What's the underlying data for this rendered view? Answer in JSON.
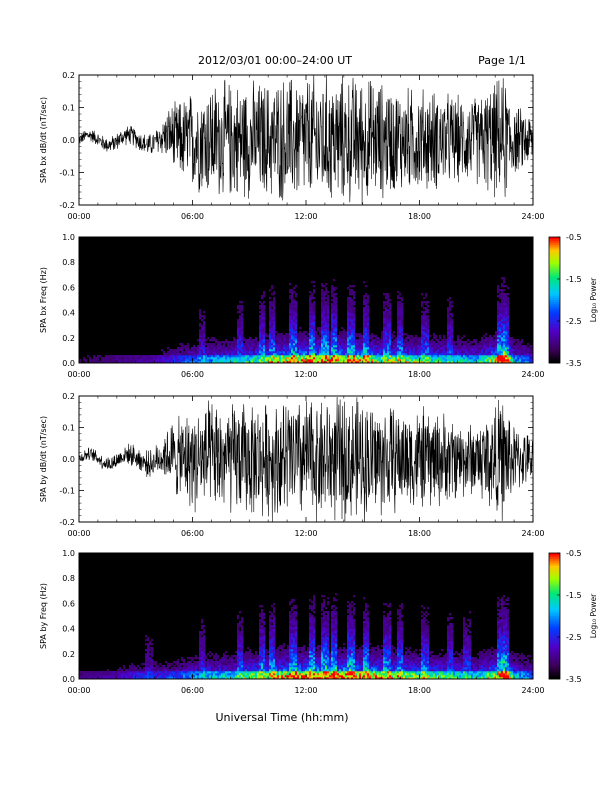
{
  "header": {
    "title": "2012/03/01   00:00–24:00 UT",
    "page": "Page 1/1"
  },
  "footer": {
    "xlabel": "Universal Time (hh:mm)"
  },
  "colorbar": {
    "label": "Log₁₀ Power",
    "ticks": [
      "-0.5",
      "-1.5",
      "-2.5",
      "-3.5"
    ],
    "range": [
      -3.5,
      -0.5
    ]
  },
  "chart_data": [
    {
      "type": "line",
      "ylabel": "SPA bx dB/dt (nT/sec)",
      "xlim_hours": [
        0,
        24
      ],
      "ylim": [
        -0.2,
        0.2
      ],
      "x_ticks": [
        "00:00",
        "06:00",
        "12:00",
        "18:00",
        "24:00"
      ],
      "y_ticks": [
        "-0.2",
        "-0.1",
        "0.0",
        "0.1",
        "0.2"
      ],
      "trace_color": "#000000",
      "envelope": {
        "hours": [
          0,
          1,
          2,
          3,
          4,
          4.5,
          5,
          6,
          7,
          8,
          9,
          10,
          11,
          12,
          13,
          14,
          15,
          16,
          17,
          18,
          19,
          20,
          21,
          22,
          22.5,
          23,
          24
        ],
        "amplitude": [
          0.02,
          0.025,
          0.03,
          0.035,
          0.04,
          0.07,
          0.12,
          0.17,
          0.2,
          0.2,
          0.2,
          0.2,
          0.22,
          0.22,
          0.22,
          0.22,
          0.22,
          0.2,
          0.18,
          0.18,
          0.17,
          0.15,
          0.15,
          0.2,
          0.22,
          0.12,
          0.09
        ]
      }
    },
    {
      "type": "heatmap",
      "ylabel": "SPA bx Freq (Hz)",
      "xlim_hours": [
        0,
        24
      ],
      "ylim": [
        0,
        1.0
      ],
      "x_ticks": [
        "00:00",
        "06:00",
        "12:00",
        "18:00",
        "24:00"
      ],
      "y_ticks": [
        "0.0",
        "0.2",
        "0.4",
        "0.6",
        "0.8",
        "1.0"
      ],
      "zlabel": "Log₁₀ Power",
      "zlim": [
        -3.5,
        -0.5
      ],
      "activity": {
        "hours": [
          0,
          2,
          4,
          5,
          6,
          7,
          8,
          9,
          10,
          11,
          12,
          13,
          14,
          15,
          16,
          17,
          18,
          19,
          20,
          21,
          22,
          22.5,
          23,
          24
        ],
        "level": [
          0.1,
          0.15,
          0.2,
          0.3,
          0.4,
          0.5,
          0.5,
          0.6,
          0.7,
          0.8,
          0.85,
          0.85,
          0.85,
          0.8,
          0.7,
          0.7,
          0.65,
          0.6,
          0.55,
          0.5,
          0.8,
          1.0,
          0.5,
          0.35
        ]
      },
      "bursts_hours": [
        6.5,
        8.5,
        9.7,
        10.2,
        11.3,
        12.3,
        13.0,
        13.5,
        14.4,
        15.2,
        16.3,
        17.0,
        18.3,
        19.6,
        22.3,
        22.6
      ]
    },
    {
      "type": "line",
      "ylabel": "SPA by dB/dt (nT/sec)",
      "xlim_hours": [
        0,
        24
      ],
      "ylim": [
        -0.2,
        0.2
      ],
      "x_ticks": [
        "00:00",
        "06:00",
        "12:00",
        "18:00",
        "24:00"
      ],
      "y_ticks": [
        "-0.2",
        "-0.1",
        "0.0",
        "0.1",
        "0.2"
      ],
      "trace_color": "#000000",
      "envelope": {
        "hours": [
          0,
          1,
          2,
          3,
          4,
          4.5,
          5,
          6,
          7,
          8,
          9,
          10,
          11,
          12,
          13,
          14,
          15,
          16,
          17,
          18,
          19,
          20,
          21,
          22,
          22.5,
          23,
          24
        ],
        "amplitude": [
          0.02,
          0.025,
          0.03,
          0.04,
          0.05,
          0.08,
          0.13,
          0.18,
          0.2,
          0.2,
          0.2,
          0.2,
          0.22,
          0.22,
          0.22,
          0.22,
          0.22,
          0.2,
          0.18,
          0.18,
          0.17,
          0.14,
          0.13,
          0.2,
          0.22,
          0.12,
          0.08
        ]
      }
    },
    {
      "type": "heatmap",
      "ylabel": "SPA by Freq (Hz)",
      "xlim_hours": [
        0,
        24
      ],
      "ylim": [
        0,
        1.0
      ],
      "x_ticks": [
        "00:00",
        "06:00",
        "12:00",
        "18:00",
        "24:00"
      ],
      "y_ticks": [
        "0.0",
        "0.2",
        "0.4",
        "0.6",
        "0.8",
        "1.0"
      ],
      "zlabel": "Log₁₀ Power",
      "zlim": [
        -3.5,
        -0.5
      ],
      "activity": {
        "hours": [
          0,
          2,
          3.5,
          4,
          5,
          6,
          7,
          8,
          9,
          10,
          11,
          12,
          13,
          14,
          15,
          16,
          17,
          18,
          19,
          20,
          21,
          22,
          22.5,
          23,
          24
        ],
        "level": [
          0.15,
          0.2,
          0.35,
          0.3,
          0.35,
          0.45,
          0.55,
          0.55,
          0.7,
          0.75,
          0.85,
          0.9,
          0.9,
          0.9,
          0.85,
          0.8,
          0.75,
          0.7,
          0.65,
          0.6,
          0.55,
          0.8,
          1.0,
          0.55,
          0.4
        ]
      },
      "bursts_hours": [
        3.7,
        6.5,
        8.5,
        9.7,
        10.2,
        11.3,
        12.3,
        13.0,
        13.5,
        14.4,
        15.2,
        16.3,
        17.0,
        18.3,
        19.6,
        20.5,
        22.3,
        22.6
      ]
    }
  ]
}
